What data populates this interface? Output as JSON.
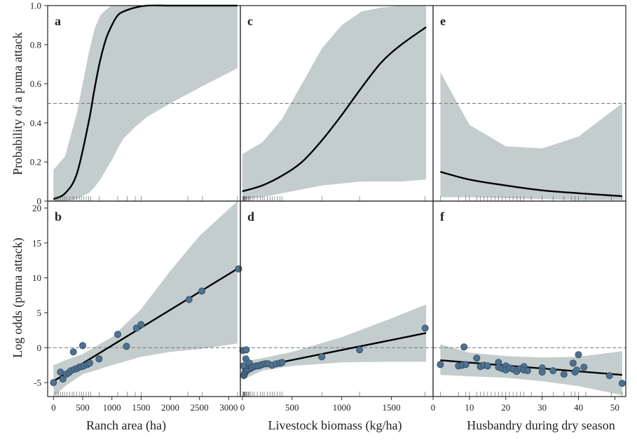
{
  "row_ylabels": [
    "Probability of a puma attack",
    "Log odds (puma attack)"
  ],
  "col_xlabels": [
    "Ranch area (ha)",
    "Livestock biomass (kg/ha)",
    "Husbandry during dry season"
  ],
  "colors": {
    "band": "#c3cdcd",
    "line": "#000000",
    "point": "#4f7190",
    "point_edge": "#2f4b63",
    "ref": "#777777"
  },
  "chart_data": [
    {
      "type": "line",
      "panel": "a",
      "row": 0,
      "col": 0,
      "xlim": [
        -100,
        3200
      ],
      "ylim": [
        0,
        1
      ],
      "yticks": [
        0,
        0.2,
        0.4,
        0.6,
        0.8,
        1.0
      ],
      "ytick_labels": [
        "0",
        "0.2",
        "0.4",
        "0.6",
        "0.8",
        "1.0"
      ],
      "ref": 0.5,
      "x": [
        0,
        200,
        400,
        600,
        700,
        800,
        900,
        1000,
        1100,
        1200,
        1400,
        1600,
        2000,
        2500,
        3150
      ],
      "y": [
        0.01,
        0.04,
        0.14,
        0.4,
        0.57,
        0.72,
        0.83,
        0.9,
        0.95,
        0.97,
        0.99,
        1.0,
        1.0,
        1.0,
        1.0
      ],
      "lower": [
        0.0,
        0.0,
        0.01,
        0.04,
        0.07,
        0.11,
        0.16,
        0.21,
        0.27,
        0.32,
        0.38,
        0.43,
        0.5,
        0.58,
        0.68
      ],
      "upper": [
        0.16,
        0.23,
        0.45,
        0.75,
        0.88,
        0.95,
        0.98,
        1.0,
        1.0,
        1.0,
        1.0,
        1.0,
        1.0,
        1.0,
        1.0
      ],
      "rug": [
        30,
        60,
        90,
        120,
        160,
        190,
        230,
        280,
        320,
        350,
        400,
        450,
        480,
        520,
        560,
        600,
        640,
        780,
        1100,
        1260,
        1400,
        1500,
        2300,
        2550,
        3150
      ]
    },
    {
      "type": "line",
      "panel": "c",
      "row": 0,
      "col": 1,
      "xlim": [
        -20,
        1920
      ],
      "ylim": [
        0,
        1
      ],
      "yticks": [
        0,
        0.2,
        0.4,
        0.6,
        0.8,
        1.0
      ],
      "ref": 0.5,
      "x": [
        0,
        200,
        400,
        600,
        800,
        1000,
        1200,
        1400,
        1600,
        1850
      ],
      "y": [
        0.05,
        0.08,
        0.13,
        0.2,
        0.31,
        0.44,
        0.58,
        0.71,
        0.8,
        0.89
      ],
      "lower": [
        0.01,
        0.02,
        0.04,
        0.06,
        0.08,
        0.09,
        0.1,
        0.1,
        0.1,
        0.11
      ],
      "upper": [
        0.24,
        0.3,
        0.42,
        0.6,
        0.78,
        0.9,
        0.97,
        0.99,
        1.0,
        1.0
      ],
      "rug": [
        5,
        10,
        15,
        20,
        25,
        30,
        40,
        50,
        60,
        70,
        80,
        100,
        120,
        150,
        180,
        200,
        220,
        250,
        280,
        300,
        320,
        350,
        380,
        400,
        800,
        1180,
        1840
      ]
    },
    {
      "type": "line",
      "panel": "e",
      "row": 0,
      "col": 2,
      "xlim": [
        0,
        53
      ],
      "ylim": [
        0,
        1
      ],
      "yticks": [
        0,
        0.2,
        0.4,
        0.6,
        0.8,
        1.0
      ],
      "ref": 0.5,
      "x": [
        2,
        10,
        20,
        30,
        40,
        52
      ],
      "y": [
        0.15,
        0.11,
        0.08,
        0.055,
        0.04,
        0.025
      ],
      "lower": [
        0.02,
        0.02,
        0.015,
        0.01,
        0.005,
        0.005
      ],
      "upper": [
        0.66,
        0.39,
        0.28,
        0.27,
        0.33,
        0.5
      ],
      "rug": [
        2,
        7,
        9,
        10,
        12,
        13,
        14,
        15,
        16,
        17,
        18,
        19,
        20,
        21,
        22,
        23,
        24,
        25,
        27,
        30,
        33,
        36,
        38,
        39,
        40,
        42,
        49,
        52
      ]
    },
    {
      "type": "scatter",
      "panel": "b",
      "row": 1,
      "col": 0,
      "xlim": [
        -100,
        3200
      ],
      "ylim": [
        -7,
        21
      ],
      "yticks": [
        -5,
        0,
        5,
        10,
        15,
        20
      ],
      "ytick_labels": [
        "-5",
        "0",
        "5",
        "10",
        "15",
        "20"
      ],
      "xticks": [
        0,
        500,
        1000,
        1500,
        2000,
        2500,
        3000
      ],
      "xtick_labels": [
        "0",
        "500",
        "1000",
        "1500",
        "2000",
        "2500",
        "3000"
      ],
      "ref": 0,
      "fit": {
        "x": [
          0,
          3150
        ],
        "y": [
          -4.8,
          11.3
        ]
      },
      "band": {
        "x": [
          0,
          200,
          500,
          1000,
          1500,
          2000,
          2500,
          3150
        ],
        "lower": [
          -7.0,
          -5.5,
          -3.8,
          -2.5,
          -1.3,
          -0.6,
          -0.2,
          0.6
        ],
        "upper": [
          -2.5,
          -1.8,
          -0.9,
          1.5,
          5.5,
          11.0,
          16.0,
          21.0
        ]
      },
      "points": {
        "x": [
          0,
          120,
          160,
          220,
          260,
          300,
          340,
          360,
          400,
          440,
          480,
          500,
          520,
          580,
          620,
          780,
          1100,
          1250,
          1420,
          1500,
          2320,
          2540,
          3170
        ],
        "y": [
          -5.0,
          -3.5,
          -4.5,
          -3.8,
          -3.6,
          -3.3,
          -0.6,
          -3.1,
          -3.0,
          -2.8,
          -2.7,
          0.3,
          -2.6,
          -2.4,
          -2.2,
          -1.6,
          1.9,
          0.2,
          2.8,
          3.3,
          6.9,
          8.1,
          11.3
        ]
      },
      "rug": [
        30,
        60,
        90,
        120,
        160,
        190,
        230,
        280,
        320,
        350,
        400,
        450,
        480,
        520,
        560,
        600,
        640,
        780,
        1100,
        1260,
        1400,
        1500,
        2300,
        2550,
        3150
      ]
    },
    {
      "type": "scatter",
      "panel": "d",
      "row": 1,
      "col": 1,
      "xlim": [
        -20,
        1920
      ],
      "ylim": [
        -7,
        21
      ],
      "yticks": [
        -5,
        0,
        5,
        10,
        15,
        20
      ],
      "xticks": [
        0,
        500,
        1000,
        1500
      ],
      "xtick_labels": [
        "0",
        "500",
        "1000",
        "1500"
      ],
      "ref": 0,
      "fit": {
        "x": [
          0,
          1850
        ],
        "y": [
          -3.2,
          2.1
        ]
      },
      "band": {
        "x": [
          0,
          200,
          500,
          1000,
          1500,
          1850
        ],
        "lower": [
          -4.6,
          -3.3,
          -2.6,
          -2.1,
          -2.0,
          -2.0
        ],
        "upper": [
          -2.0,
          -1.5,
          -0.6,
          1.5,
          4.2,
          6.2
        ]
      },
      "points": {
        "x": [
          5,
          10,
          15,
          20,
          25,
          30,
          35,
          40,
          45,
          50,
          60,
          70,
          80,
          90,
          100,
          120,
          140,
          160,
          180,
          200,
          230,
          260,
          300,
          340,
          380,
          400,
          800,
          1180,
          1840
        ],
        "y": [
          -0.4,
          -2.6,
          -4.0,
          -3.8,
          -3.6,
          -3.4,
          -1.6,
          -0.3,
          -3.3,
          -3.2,
          -3.1,
          -2.2,
          -3.0,
          -2.9,
          -2.8,
          -2.7,
          -2.6,
          -2.6,
          -2.5,
          -2.4,
          -2.3,
          -2.3,
          -2.5,
          -2.3,
          -2.2,
          -2.1,
          -1.3,
          -0.3,
          2.8
        ]
      },
      "rug": [
        5,
        10,
        15,
        20,
        25,
        30,
        40,
        50,
        60,
        70,
        80,
        100,
        120,
        150,
        180,
        200,
        220,
        250,
        280,
        300,
        320,
        350,
        380,
        400,
        800,
        1180,
        1840
      ]
    },
    {
      "type": "scatter",
      "panel": "f",
      "row": 1,
      "col": 2,
      "xlim": [
        0,
        53
      ],
      "ylim": [
        -7,
        21
      ],
      "yticks": [
        -5,
        0,
        5,
        10,
        15,
        20
      ],
      "xticks": [
        0,
        10,
        20,
        30,
        40,
        50
      ],
      "xtick_labels": [
        "0",
        "10",
        "20",
        "30",
        "40",
        "50"
      ],
      "ref": 0,
      "fit": {
        "x": [
          2,
          52
        ],
        "y": [
          -1.8,
          -3.9
        ]
      },
      "band": {
        "x": [
          2,
          10,
          20,
          30,
          40,
          52
        ],
        "lower": [
          -3.9,
          -4.1,
          -4.3,
          -4.8,
          -5.5,
          -6.8
        ],
        "upper": [
          0.5,
          -0.7,
          -1.2,
          -1.4,
          -1.3,
          -0.5
        ]
      },
      "points": {
        "x": [
          2,
          7,
          8,
          8.5,
          9,
          12,
          13,
          14,
          15,
          18,
          18,
          19,
          20,
          20,
          21,
          22,
          23,
          24,
          25,
          25,
          26,
          30,
          30,
          33,
          36,
          38.5,
          39,
          39.5,
          40,
          41.5,
          48.5,
          52
        ],
        "y": [
          -2.4,
          -2.6,
          -2.5,
          0.1,
          -2.4,
          -1.5,
          -2.7,
          -2.5,
          -2.6,
          -2.1,
          -2.8,
          -3.0,
          -2.6,
          -3.2,
          -2.9,
          -3.1,
          -3.4,
          -3.0,
          -2.7,
          -3.2,
          -3.3,
          -2.9,
          -3.5,
          -3.3,
          -3.8,
          -2.2,
          -3.5,
          -3.2,
          -1.0,
          -2.8,
          -4.0,
          -5.1
        ]
      },
      "rug": [
        2,
        7,
        9,
        10,
        12,
        13,
        14,
        15,
        16,
        17,
        18,
        19,
        20,
        21,
        22,
        23,
        24,
        25,
        27,
        30,
        33,
        36,
        38,
        39,
        40,
        42,
        49,
        52
      ]
    }
  ],
  "panel_letters": [
    "a",
    "c",
    "e",
    "b",
    "d",
    "f"
  ]
}
